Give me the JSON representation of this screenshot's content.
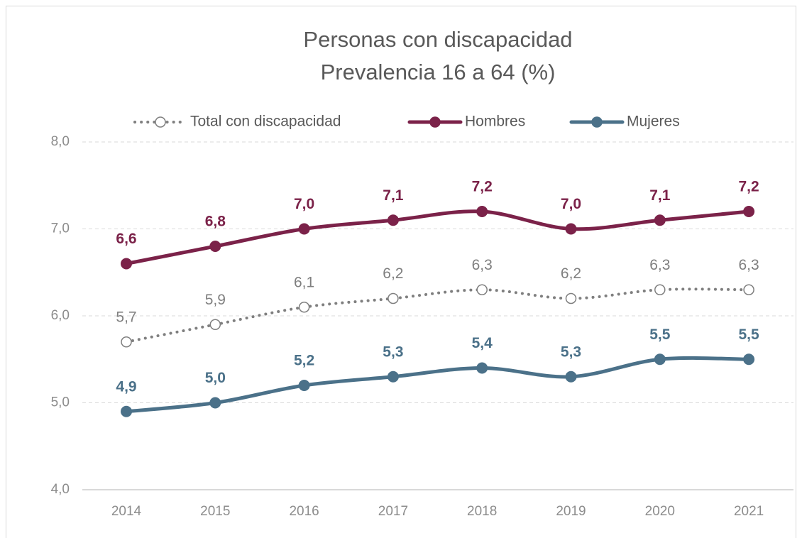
{
  "chart_data": {
    "type": "line",
    "title": "Personas con discapacidad",
    "subtitle": "Prevalencia 16 a 64 (%)",
    "categories": [
      "2014",
      "2015",
      "2016",
      "2017",
      "2018",
      "2019",
      "2020",
      "2021"
    ],
    "series": [
      {
        "name": "Total con discapacidad",
        "color": "#7f7f7f",
        "line_style": "dotted",
        "marker_fill": "#ffffff",
        "label_bold": false,
        "values": [
          5.7,
          5.9,
          6.1,
          6.2,
          6.3,
          6.2,
          6.3,
          6.3
        ],
        "value_labels": [
          "5,7",
          "5,9",
          "6,1",
          "6,2",
          "6,3",
          "6,2",
          "6,3",
          "6,3"
        ]
      },
      {
        "name": "Hombres",
        "color": "#7b2249",
        "line_style": "solid",
        "marker_fill": "#7b2249",
        "label_bold": true,
        "values": [
          6.6,
          6.8,
          7.0,
          7.1,
          7.2,
          7.0,
          7.1,
          7.2
        ],
        "value_labels": [
          "6,6",
          "6,8",
          "7,0",
          "7,1",
          "7,2",
          "7,0",
          "7,1",
          "7,2"
        ]
      },
      {
        "name": "Mujeres",
        "color": "#4b7189",
        "line_style": "solid",
        "marker_fill": "#4b7189",
        "label_bold": true,
        "values": [
          4.9,
          5.0,
          5.2,
          5.3,
          5.4,
          5.3,
          5.5,
          5.5
        ],
        "value_labels": [
          "4,9",
          "5,0",
          "5,2",
          "5,3",
          "5,4",
          "5,3",
          "5,5",
          "5,5"
        ]
      }
    ],
    "ylim": [
      4,
      8
    ],
    "yticks": [
      {
        "value": 4,
        "label": "4,0"
      },
      {
        "value": 5,
        "label": "5,0"
      },
      {
        "value": 6,
        "label": "6,0"
      },
      {
        "value": 7,
        "label": "7,0"
      },
      {
        "value": 8,
        "label": "8,0"
      }
    ],
    "grid": true,
    "legend": "top",
    "smooth": true
  }
}
